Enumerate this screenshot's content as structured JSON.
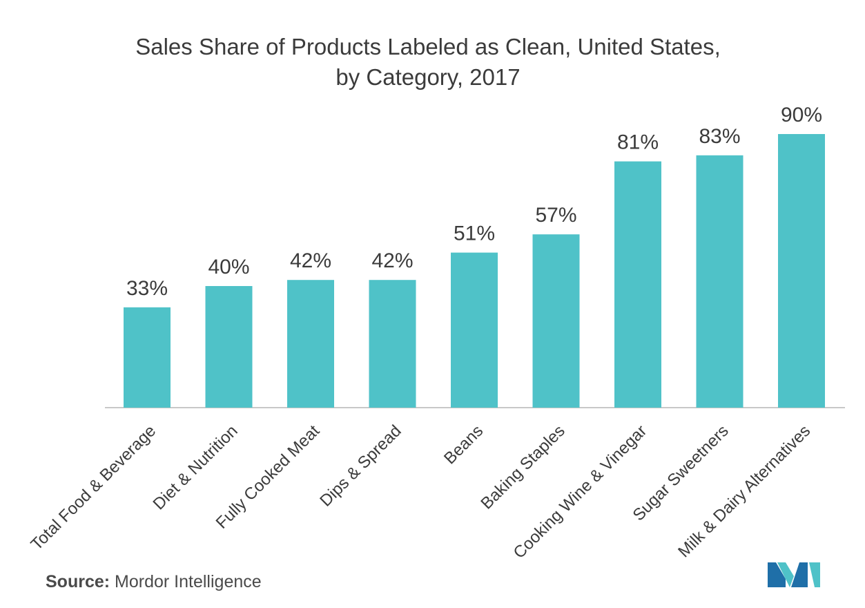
{
  "chart_data": {
    "type": "bar",
    "title": "Sales Share of Products Labeled as Clean, United States,",
    "subtitle": "by Category, 2017",
    "categories": [
      "Total Food & Beverage",
      "Diet & Nutrition",
      "Fully Cooked Meat",
      "Dips & Spread",
      "Beans",
      "Baking Staples",
      "Cooking Wine & Vinegar",
      "Sugar Sweetners",
      "Milk & Dairy Alternatives"
    ],
    "values": [
      33,
      40,
      42,
      42,
      51,
      57,
      81,
      83,
      90
    ],
    "data_labels": [
      "33%",
      "40%",
      "42%",
      "42%",
      "51%",
      "57%",
      "81%",
      "83%",
      "90%"
    ],
    "unit": "%",
    "ylim": [
      0,
      100
    ],
    "grid": false,
    "legend": "none",
    "bar_color": "#4fc2c8"
  },
  "source": {
    "label": "Source:",
    "text": "Mordor Intelligence"
  },
  "logo": {
    "icon": "mordor-intelligence-logo",
    "colors": [
      "#1f6fa8",
      "#4fc2c8"
    ]
  }
}
